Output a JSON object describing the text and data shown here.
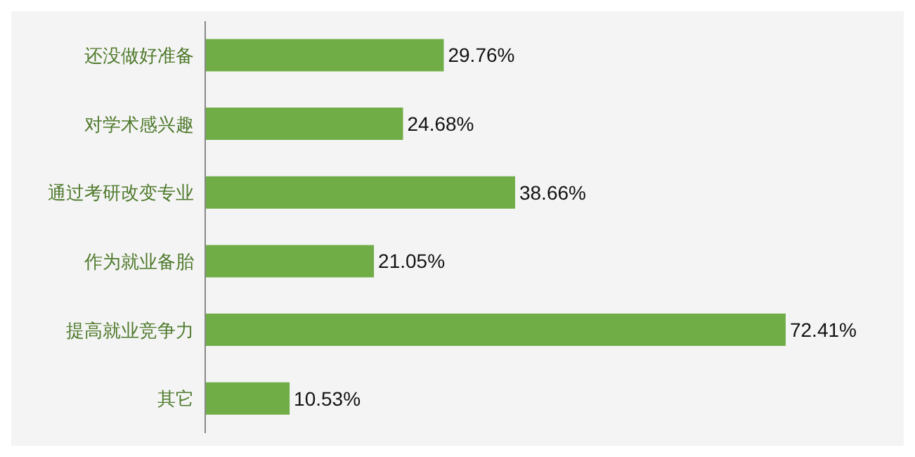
{
  "chart_data": {
    "type": "bar",
    "orientation": "horizontal",
    "categories": [
      "还没做好准备",
      "对学术感兴趣",
      "通过考研改变专业",
      "作为就业备胎",
      "提高就业竞争力",
      "其它"
    ],
    "values": [
      29.76,
      24.68,
      38.66,
      21.05,
      72.41,
      10.53
    ],
    "value_labels": [
      "29.76%",
      "24.68%",
      "38.66%",
      "21.05%",
      "72.41%",
      "10.53%"
    ],
    "color": "#70ad47"
  }
}
